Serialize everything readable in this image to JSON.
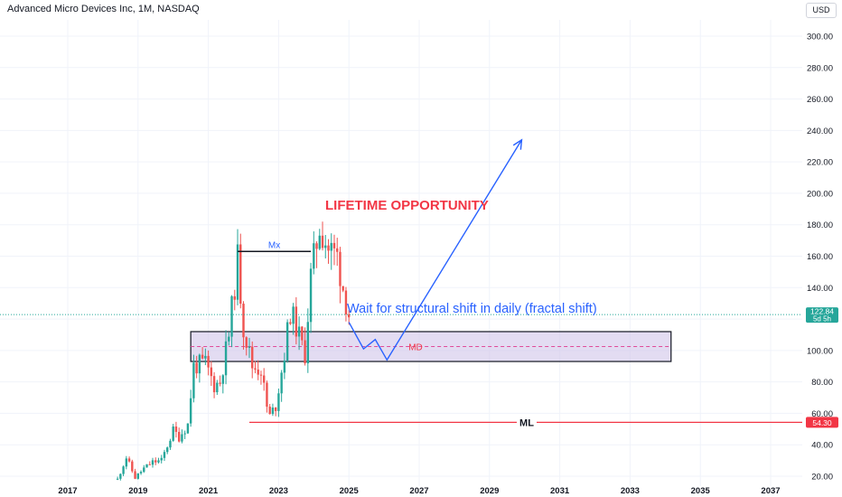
{
  "header": {
    "title": "Advanced Micro Devices Inc, 1M, NASDAQ",
    "currency": "USD"
  },
  "colors": {
    "up": "#26a69a",
    "down": "#ef5350",
    "annotation_blue": "#2962ff",
    "annotation_red": "#f23645",
    "zone_fill": "#d1c4e9"
  },
  "chart_data": {
    "type": "candlestick",
    "title": "Advanced Micro Devices Inc, 1M, NASDAQ",
    "y_axis": {
      "min": 20,
      "max": 300,
      "ticks": [
        20,
        40,
        60,
        80,
        100,
        120,
        140,
        160,
        180,
        200,
        220,
        240,
        260,
        280,
        300
      ],
      "tick_labels": [
        "20.00",
        "40.00",
        "60.00",
        "80.00",
        "100.00",
        "120.00",
        "140.00",
        "160.00",
        "180.00",
        "200.00",
        "220.00",
        "240.00",
        "260.00",
        "280.00",
        "300.00"
      ]
    },
    "x_axis": {
      "ticks": [
        2017,
        2019,
        2021,
        2023,
        2025,
        2027,
        2029,
        2031,
        2033,
        2035,
        2037
      ],
      "tick_labels": [
        "2017",
        "2019",
        "2021",
        "2023",
        "2025",
        "2027",
        "2029",
        "2031",
        "2033",
        "2035",
        "2037"
      ]
    },
    "candle_path": [
      [
        "2018-06",
        18
      ],
      [
        "2018-09",
        32
      ],
      [
        "2018-12",
        19
      ],
      [
        "2019-03",
        25
      ],
      [
        "2019-06",
        29
      ],
      [
        "2019-09",
        30
      ],
      [
        "2020-01",
        49
      ],
      [
        "2020-03",
        45
      ],
      [
        "2020-06",
        53
      ],
      [
        "2020-08",
        90
      ],
      [
        "2020-12",
        92
      ],
      [
        "2021-03",
        78
      ],
      [
        "2021-05",
        80
      ],
      [
        "2021-08",
        110
      ],
      [
        "2021-11",
        158
      ],
      [
        "2022-01",
        115
      ],
      [
        "2022-04",
        90
      ],
      [
        "2022-07",
        88
      ],
      [
        "2022-09",
        64
      ],
      [
        "2022-10",
        58
      ],
      [
        "2022-12",
        65
      ],
      [
        "2023-03",
        98
      ],
      [
        "2023-05",
        125
      ],
      [
        "2023-07",
        115
      ],
      [
        "2023-09",
        103
      ],
      [
        "2023-10",
        98
      ],
      [
        "2023-12",
        147
      ],
      [
        "2024-03",
        180
      ],
      [
        "2024-06",
        165
      ],
      [
        "2024-09",
        160
      ],
      [
        "2024-11",
        140
      ],
      [
        "2025-01",
        122.84
      ]
    ],
    "price_line": {
      "value": 122.84,
      "label": "122.84",
      "countdown": "5d 5h"
    },
    "level_ml": {
      "value": 54.3,
      "label": "ML",
      "price_label": "54.30",
      "from": "2022-03",
      "to": "end"
    },
    "level_mx": {
      "value": 163,
      "label": "Mx",
      "from": "2021-11",
      "to": "2023-12"
    },
    "zone": {
      "top": 112,
      "bottom": 93,
      "mid": 102.5,
      "label": "MD",
      "from": "2020-07",
      "to": "2034-03"
    },
    "projection_path": [
      [
        "2025-01",
        118
      ],
      [
        "2025-06",
        101
      ],
      [
        "2025-10",
        107
      ],
      [
        "2026-02",
        94
      ],
      [
        "2029-12",
        234
      ]
    ],
    "annotations": {
      "lifetime": {
        "text": "LIFETIME OPPORTUNITY"
      },
      "wait": {
        "text": "Wait for structural shift in daily (fractal shift)"
      }
    }
  }
}
